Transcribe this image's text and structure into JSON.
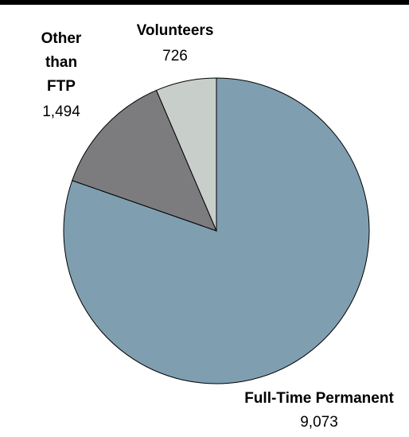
{
  "chart_data": {
    "type": "pie",
    "categories": [
      "Full-Time Permanent",
      "Other than FTP",
      "Volunteers"
    ],
    "values": [
      9073,
      1494,
      726
    ],
    "value_labels": [
      "9,073",
      "1,494",
      "726"
    ],
    "colors": [
      "#7f9fb1",
      "#7c7c7f",
      "#c8cfcb"
    ]
  }
}
